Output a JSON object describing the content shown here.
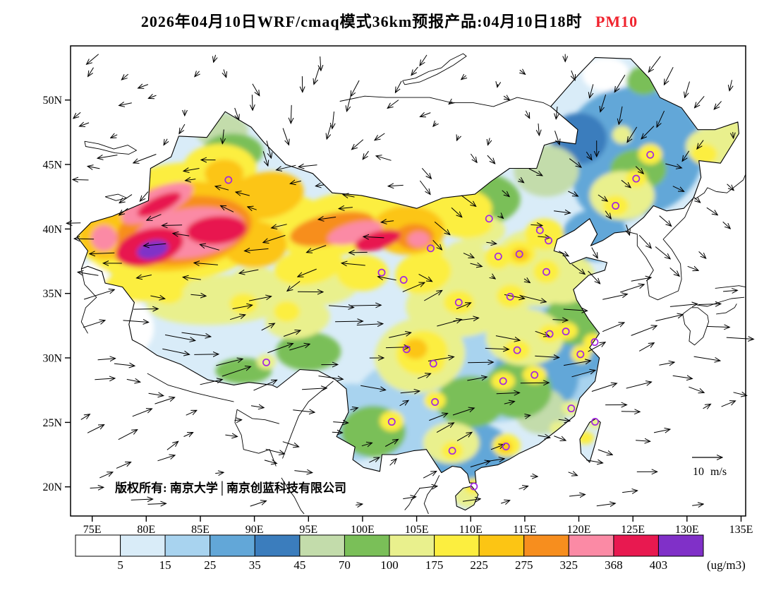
{
  "title": {
    "main": "2026年04月10日WRF/cmaq模式36km预报产品:04月10日18时",
    "pollutant": "PM10",
    "pollutant_color": "#f0232e"
  },
  "map": {
    "copyright": "版权所有: 南京大学│南京创蓝科技有限公司",
    "wind_legend_label": "10 m/s",
    "lat_ticks": [
      "20N",
      "25N",
      "30N",
      "35N",
      "40N",
      "45N",
      "50N"
    ],
    "lon_ticks": [
      "75E",
      "80E",
      "85E",
      "90E",
      "95E",
      "100E",
      "105E",
      "110E",
      "115E",
      "120E",
      "125E",
      "130E",
      "135E"
    ]
  },
  "colorbar": {
    "unit": "(ug/m3)",
    "levels": [
      5,
      15,
      25,
      35,
      45,
      70,
      100,
      175,
      225,
      275,
      325,
      368,
      403
    ],
    "colors": [
      "#ffffff",
      "#d9ecf8",
      "#a8d3ef",
      "#62a7d8",
      "#3b7dbd",
      "#c3dcab",
      "#7abf58",
      "#e9f08d",
      "#fcee3f",
      "#fcc514",
      "#f78e1e",
      "#fb8aa5",
      "#e81950",
      "#8030c8"
    ]
  },
  "chart_data": {
    "type": "heatmap",
    "variable": "PM10",
    "unit": "ug/m3",
    "model": "WRF/cmaq 36km",
    "valid_label": "04月10日18时",
    "lon_range": [
      73,
      135.4
    ],
    "lat_range": [
      17.8,
      54.2
    ],
    "station_marker_color": "#a428e0",
    "base_value": 12,
    "hotspots_format": [
      "lon",
      "lat",
      "rx_deg",
      "ry_deg",
      "rot_deg",
      "pm10"
    ],
    "hotspots": [
      [
        83,
        40.5,
        9.5,
        4.6,
        -8,
        200
      ],
      [
        83,
        40.2,
        7.5,
        3.4,
        -8,
        250
      ],
      [
        83.5,
        39.9,
        6.3,
        2.6,
        -8,
        300
      ],
      [
        84,
        39.7,
        5.2,
        1.9,
        -8,
        350
      ],
      [
        80.3,
        38.6,
        3.2,
        1.4,
        -15,
        386
      ],
      [
        80.6,
        38.4,
        1.5,
        0.7,
        -15,
        420
      ],
      [
        86.5,
        39.9,
        2.8,
        1.1,
        -5,
        386
      ],
      [
        81,
        42,
        3.6,
        1.1,
        -25,
        350
      ],
      [
        81.2,
        41.9,
        2.2,
        0.6,
        -25,
        386
      ],
      [
        76.2,
        39.6,
        2.4,
        2,
        0,
        260
      ],
      [
        76.1,
        39.3,
        1.2,
        1,
        0,
        330
      ],
      [
        86.8,
        44.7,
        3.4,
        1.9,
        0,
        200
      ],
      [
        87.2,
        44.3,
        1.8,
        1.1,
        0,
        255
      ],
      [
        88,
        46,
        2.8,
        1.4,
        0,
        80
      ],
      [
        87,
        47.6,
        2.4,
        1.4,
        0,
        55
      ],
      [
        91,
        42.6,
        3.6,
        1.8,
        -10,
        230
      ],
      [
        93.6,
        41.4,
        2.4,
        1.2,
        0,
        200
      ],
      [
        90,
        38.8,
        3,
        1.8,
        0,
        260
      ],
      [
        98,
        40.4,
        6,
        2.4,
        -14,
        220
      ],
      [
        97.2,
        40,
        4,
        1.2,
        -12,
        300
      ],
      [
        99.3,
        39.7,
        2.6,
        0.8,
        -14,
        350
      ],
      [
        101.4,
        39.1,
        2.2,
        0.7,
        -16,
        386
      ],
      [
        104.2,
        39.9,
        3.4,
        1.9,
        0,
        240
      ],
      [
        104.8,
        39.4,
        1.8,
        1,
        0,
        310
      ],
      [
        105.2,
        39.2,
        1,
        0.6,
        0,
        355
      ],
      [
        108,
        41.4,
        4,
        1.8,
        -5,
        190
      ],
      [
        110,
        42.3,
        4.6,
        2.2,
        0,
        90
      ],
      [
        109.6,
        40.3,
        2.4,
        1,
        0,
        200
      ],
      [
        111,
        39.9,
        2.2,
        1.2,
        0,
        150
      ],
      [
        95,
        37.1,
        3.2,
        1.4,
        -10,
        220
      ],
      [
        96,
        36,
        3.8,
        1.9,
        0,
        130
      ],
      [
        100,
        36.6,
        2.4,
        1.4,
        0,
        180
      ],
      [
        87,
        34.5,
        7,
        1.9,
        -4,
        120
      ],
      [
        82,
        35,
        1.4,
        0.8,
        0,
        200
      ],
      [
        89,
        34.2,
        1.3,
        0.8,
        0,
        200
      ],
      [
        93,
        33.6,
        1.2,
        0.8,
        0,
        200
      ],
      [
        90,
        36,
        2.2,
        1.1,
        0,
        150
      ],
      [
        80,
        35.8,
        4,
        1.4,
        -6,
        190
      ],
      [
        94,
        33,
        3,
        1.5,
        -8,
        100
      ],
      [
        95,
        30.5,
        3,
        1.5,
        0,
        80
      ],
      [
        89,
        29,
        2.6,
        1,
        0,
        70
      ],
      [
        91.1,
        29.7,
        0.9,
        0.6,
        0,
        150
      ],
      [
        77.5,
        32.3,
        3.2,
        2.4,
        0,
        3
      ],
      [
        74.9,
        36.2,
        1.6,
        1.2,
        0,
        3
      ],
      [
        125,
        46,
        6.5,
        5,
        0,
        28
      ],
      [
        125.5,
        44.6,
        2.6,
        1.6,
        0,
        90
      ],
      [
        126.6,
        45.8,
        1.1,
        0.8,
        0,
        200
      ],
      [
        125.3,
        43.9,
        1,
        0.7,
        0,
        190
      ],
      [
        123.4,
        41.8,
        1.2,
        0.8,
        0,
        205
      ],
      [
        124,
        42.6,
        3,
        1.9,
        0,
        100
      ],
      [
        124,
        47.3,
        0.9,
        0.7,
        0,
        150
      ],
      [
        132.5,
        46.4,
        2.6,
        1.5,
        0,
        120
      ],
      [
        131.6,
        45.8,
        1.2,
        0.8,
        0,
        200
      ],
      [
        134,
        47.8,
        1.1,
        0.8,
        0,
        160
      ],
      [
        122.5,
        52,
        2.2,
        1.3,
        0,
        3
      ],
      [
        126,
        51.5,
        1.6,
        1.1,
        0,
        90
      ],
      [
        120,
        47,
        2.6,
        2,
        0,
        40
      ],
      [
        117,
        44.5,
        3,
        2,
        0,
        60
      ],
      [
        116,
        37,
        4.2,
        3,
        0,
        130
      ],
      [
        116.8,
        39.6,
        1.8,
        1.2,
        0,
        210
      ],
      [
        114.5,
        38.1,
        1.5,
        1,
        0,
        220
      ],
      [
        114.6,
        38,
        0.8,
        0.5,
        0,
        265
      ],
      [
        112.5,
        37.8,
        1.2,
        0.9,
        0,
        210
      ],
      [
        117,
        36.7,
        1.2,
        0.9,
        0,
        200
      ],
      [
        118.5,
        36.2,
        3,
        2,
        0,
        100
      ],
      [
        113.7,
        34.8,
        1.3,
        0.9,
        0,
        205
      ],
      [
        109,
        34.2,
        5,
        2.6,
        -5,
        115
      ],
      [
        108.9,
        34.3,
        1.4,
        0.9,
        0,
        210
      ],
      [
        112,
        35.2,
        4,
        2.4,
        0,
        140
      ],
      [
        109.5,
        37.5,
        2.2,
        1.6,
        0,
        160
      ],
      [
        105.6,
        36.6,
        2.6,
        1.6,
        -10,
        180
      ],
      [
        106.3,
        38.5,
        1.3,
        0.9,
        0,
        220
      ],
      [
        115,
        31.6,
        3.6,
        2.2,
        0,
        110
      ],
      [
        114.3,
        30.6,
        1.2,
        0.8,
        0,
        205
      ],
      [
        119.5,
        33,
        2.6,
        2,
        0,
        80
      ],
      [
        118.8,
        32.1,
        1.1,
        0.7,
        0,
        200
      ],
      [
        117.3,
        31.9,
        1,
        0.7,
        0,
        200
      ],
      [
        121.4,
        31.2,
        1,
        0.7,
        0,
        210
      ],
      [
        120.2,
        30.3,
        0.9,
        0.7,
        0,
        190
      ],
      [
        105.3,
        30.2,
        4.2,
        2.9,
        -10,
        100
      ],
      [
        105.5,
        30.4,
        2.4,
        1.7,
        -10,
        200
      ],
      [
        104.9,
        30.7,
        1.1,
        0.8,
        0,
        255
      ],
      [
        106.5,
        29.6,
        1.1,
        0.8,
        0,
        215
      ],
      [
        102.7,
        25.1,
        1.1,
        0.8,
        0,
        195
      ],
      [
        101,
        24.3,
        3,
        2,
        0,
        90
      ],
      [
        106.7,
        26.7,
        1,
        0.7,
        0,
        175
      ],
      [
        110,
        26.6,
        3.2,
        2,
        0,
        90
      ],
      [
        108.2,
        23.4,
        2.6,
        1.6,
        0,
        120
      ],
      [
        108.3,
        22.8,
        1,
        0.7,
        0,
        185
      ],
      [
        113.3,
        23.2,
        1.3,
        0.9,
        0,
        205
      ],
      [
        113.2,
        23.1,
        0.6,
        0.45,
        0,
        255
      ],
      [
        110.3,
        20.05,
        0.9,
        0.6,
        0,
        180
      ],
      [
        109.8,
        19.2,
        1.3,
        0.8,
        0,
        130
      ],
      [
        113,
        28.2,
        1.1,
        0.7,
        0,
        200
      ],
      [
        115.9,
        28.7,
        1.1,
        0.7,
        0,
        210
      ],
      [
        114.3,
        27.5,
        3.2,
        2.2,
        0,
        70
      ],
      [
        116.5,
        25.9,
        2.4,
        1.8,
        0,
        60
      ],
      [
        119.3,
        26.1,
        0.9,
        0.6,
        0,
        155
      ],
      [
        118.1,
        24.5,
        0.8,
        0.6,
        0,
        160
      ],
      [
        120.6,
        23.8,
        0.8,
        0.5,
        0,
        185
      ],
      [
        121.5,
        25,
        0.7,
        0.5,
        0,
        160
      ],
      [
        117,
        33,
        6,
        4,
        0,
        20
      ],
      [
        112,
        29,
        6,
        4,
        0,
        20
      ],
      [
        120,
        28.5,
        4,
        3,
        0,
        22
      ],
      [
        105,
        26,
        6,
        4,
        0,
        20
      ],
      [
        99,
        25,
        4,
        3,
        0,
        18
      ],
      [
        119.5,
        31.5,
        4,
        3,
        0,
        32
      ],
      [
        123.5,
        43.5,
        4,
        3,
        0,
        30
      ],
      [
        116,
        28.5,
        4,
        3,
        0,
        30
      ],
      [
        110,
        22.5,
        4,
        2.5,
        0,
        28
      ],
      [
        121.5,
        39.5,
        3,
        2,
        0,
        30
      ],
      [
        117.5,
        37.5,
        3,
        2,
        0,
        40
      ]
    ],
    "stations": [
      [
        87.6,
        43.8
      ],
      [
        126.6,
        45.75
      ],
      [
        125.3,
        43.9
      ],
      [
        123.4,
        41.8
      ],
      [
        116.4,
        39.9
      ],
      [
        117.2,
        39.1
      ],
      [
        114.5,
        38.05
      ],
      [
        112.55,
        37.87
      ],
      [
        111.7,
        40.8
      ],
      [
        106.3,
        38.5
      ],
      [
        103.8,
        36.05
      ],
      [
        101.77,
        36.62
      ],
      [
        108.9,
        34.3
      ],
      [
        113.65,
        34.75
      ],
      [
        117,
        36.67
      ],
      [
        117.3,
        31.86
      ],
      [
        118.8,
        32.05
      ],
      [
        121.47,
        31.23
      ],
      [
        120.15,
        30.28
      ],
      [
        114.3,
        30.6
      ],
      [
        113,
        28.2
      ],
      [
        115.9,
        28.68
      ],
      [
        119.3,
        26.08
      ],
      [
        121.5,
        25.05
      ],
      [
        113.26,
        23.13
      ],
      [
        108.3,
        22.8
      ],
      [
        110.3,
        20.03
      ],
      [
        102.7,
        25.04
      ],
      [
        106.7,
        26.58
      ],
      [
        104.07,
        30.67
      ],
      [
        106.55,
        29.56
      ],
      [
        91.1,
        29.65
      ]
    ]
  }
}
